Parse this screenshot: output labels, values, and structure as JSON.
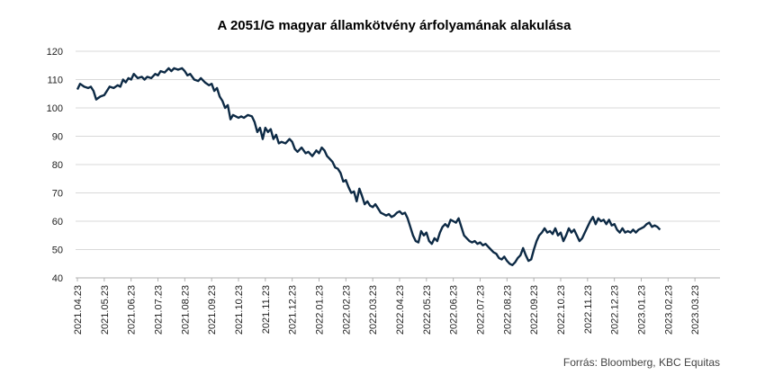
{
  "chart_data": {
    "type": "line",
    "title": "A 2051/G  magyar államkötvény  árfolyamának alakulása",
    "source": "Forrás: Bloomberg,  KBC Equitas",
    "xlabel": "",
    "ylabel": "",
    "ylim": [
      40,
      120
    ],
    "yticks": [
      40,
      50,
      60,
      70,
      80,
      90,
      100,
      110,
      120
    ],
    "x_ticks": [
      "2021.04.23",
      "2021.05.23",
      "2021.06.23",
      "2021.07.23",
      "2021.08.23",
      "2021.09.23",
      "2021.10.23",
      "2021.11.23",
      "2021.12.23",
      "2022.01.23",
      "2022.02.23",
      "2022.03.23",
      "2022.04.23",
      "2022.05.23",
      "2022.06.23",
      "2022.07.23",
      "2022.08.23",
      "2022.09.23",
      "2022.10.23",
      "2022.11.23",
      "2022.12.23",
      "2023.01.23",
      "2023.02.23",
      "2023.03.23"
    ],
    "grid": true,
    "legend": "none",
    "line_color": "#0d2a45",
    "series": [
      {
        "x_unit": "months since 2021.04.23",
        "points": [
          [
            0.0,
            106.5
          ],
          [
            0.1,
            108.5
          ],
          [
            0.25,
            107.5
          ],
          [
            0.4,
            107
          ],
          [
            0.5,
            107.5
          ],
          [
            0.6,
            106
          ],
          [
            0.7,
            103
          ],
          [
            0.85,
            104
          ],
          [
            1.0,
            104.5
          ],
          [
            1.1,
            106
          ],
          [
            1.2,
            107.5
          ],
          [
            1.35,
            107
          ],
          [
            1.5,
            108
          ],
          [
            1.6,
            107.5
          ],
          [
            1.7,
            110
          ],
          [
            1.8,
            109
          ],
          [
            1.9,
            110.5
          ],
          [
            2.0,
            110
          ],
          [
            2.1,
            112
          ],
          [
            2.25,
            110.5
          ],
          [
            2.4,
            111
          ],
          [
            2.5,
            110
          ],
          [
            2.6,
            111
          ],
          [
            2.75,
            110.5
          ],
          [
            2.9,
            112
          ],
          [
            3.0,
            111.5
          ],
          [
            3.1,
            113
          ],
          [
            3.25,
            112.5
          ],
          [
            3.4,
            114
          ],
          [
            3.5,
            113
          ],
          [
            3.6,
            114
          ],
          [
            3.75,
            113.5
          ],
          [
            3.9,
            114
          ],
          [
            4.0,
            113
          ],
          [
            4.1,
            111.5
          ],
          [
            4.2,
            112
          ],
          [
            4.35,
            110
          ],
          [
            4.5,
            109.5
          ],
          [
            4.6,
            110.5
          ],
          [
            4.75,
            109
          ],
          [
            4.9,
            108
          ],
          [
            5.0,
            108.5
          ],
          [
            5.1,
            106
          ],
          [
            5.2,
            107
          ],
          [
            5.3,
            104
          ],
          [
            5.4,
            102.5
          ],
          [
            5.5,
            100
          ],
          [
            5.6,
            101
          ],
          [
            5.7,
            96
          ],
          [
            5.8,
            97.5
          ],
          [
            5.9,
            97
          ],
          [
            6.0,
            96.5
          ],
          [
            6.1,
            97
          ],
          [
            6.2,
            96.5
          ],
          [
            6.35,
            97.5
          ],
          [
            6.5,
            97
          ],
          [
            6.6,
            95
          ],
          [
            6.7,
            91.5
          ],
          [
            6.8,
            93
          ],
          [
            6.9,
            89
          ],
          [
            7.0,
            93
          ],
          [
            7.1,
            91.5
          ],
          [
            7.2,
            92.5
          ],
          [
            7.3,
            89
          ],
          [
            7.4,
            90.5
          ],
          [
            7.5,
            87.5
          ],
          [
            7.6,
            88
          ],
          [
            7.75,
            87.5
          ],
          [
            7.9,
            89
          ],
          [
            8.0,
            88
          ],
          [
            8.1,
            85.5
          ],
          [
            8.2,
            84.5
          ],
          [
            8.35,
            86
          ],
          [
            8.5,
            84
          ],
          [
            8.6,
            84.5
          ],
          [
            8.75,
            83
          ],
          [
            8.9,
            85
          ],
          [
            9.0,
            84
          ],
          [
            9.1,
            86
          ],
          [
            9.2,
            85
          ],
          [
            9.3,
            83
          ],
          [
            9.4,
            82
          ],
          [
            9.5,
            81
          ],
          [
            9.6,
            79
          ],
          [
            9.7,
            78.5
          ],
          [
            9.8,
            77
          ],
          [
            9.9,
            74
          ],
          [
            10.0,
            74.5
          ],
          [
            10.1,
            72
          ],
          [
            10.2,
            70
          ],
          [
            10.3,
            70.5
          ],
          [
            10.4,
            67
          ],
          [
            10.5,
            71.5
          ],
          [
            10.6,
            69
          ],
          [
            10.7,
            66
          ],
          [
            10.8,
            67
          ],
          [
            10.9,
            65.5
          ],
          [
            11.0,
            65
          ],
          [
            11.1,
            66
          ],
          [
            11.2,
            64.5
          ],
          [
            11.3,
            63
          ],
          [
            11.4,
            62.5
          ],
          [
            11.5,
            62
          ],
          [
            11.6,
            62.5
          ],
          [
            11.7,
            61.5
          ],
          [
            11.8,
            62
          ],
          [
            11.9,
            63
          ],
          [
            12.0,
            63.5
          ],
          [
            12.1,
            62.5
          ],
          [
            12.2,
            63
          ],
          [
            12.3,
            61
          ],
          [
            12.4,
            58
          ],
          [
            12.5,
            55
          ],
          [
            12.6,
            53
          ],
          [
            12.7,
            52.5
          ],
          [
            12.8,
            56.5
          ],
          [
            12.9,
            55
          ],
          [
            13.0,
            56
          ],
          [
            13.1,
            53
          ],
          [
            13.2,
            52
          ],
          [
            13.3,
            54
          ],
          [
            13.4,
            53
          ],
          [
            13.5,
            56
          ],
          [
            13.6,
            58
          ],
          [
            13.7,
            59
          ],
          [
            13.8,
            58
          ],
          [
            13.9,
            60.5
          ],
          [
            14.0,
            60
          ],
          [
            14.1,
            59.5
          ],
          [
            14.2,
            61
          ],
          [
            14.3,
            58
          ],
          [
            14.4,
            55
          ],
          [
            14.5,
            54
          ],
          [
            14.6,
            53
          ],
          [
            14.7,
            52.5
          ],
          [
            14.8,
            53
          ],
          [
            14.9,
            52
          ],
          [
            15.0,
            52.5
          ],
          [
            15.1,
            51.5
          ],
          [
            15.2,
            52
          ],
          [
            15.3,
            51
          ],
          [
            15.4,
            50
          ],
          [
            15.5,
            49
          ],
          [
            15.6,
            48.5
          ],
          [
            15.7,
            47
          ],
          [
            15.8,
            46.5
          ],
          [
            15.9,
            47.5
          ],
          [
            16.0,
            46
          ],
          [
            16.1,
            45
          ],
          [
            16.2,
            44.5
          ],
          [
            16.3,
            45.5
          ],
          [
            16.4,
            47
          ],
          [
            16.5,
            48
          ],
          [
            16.6,
            50.5
          ],
          [
            16.7,
            48
          ],
          [
            16.8,
            46
          ],
          [
            16.9,
            46.5
          ],
          [
            17.0,
            50
          ],
          [
            17.1,
            53
          ],
          [
            17.2,
            55
          ],
          [
            17.3,
            56
          ],
          [
            17.4,
            57.5
          ],
          [
            17.5,
            56
          ],
          [
            17.6,
            56.5
          ],
          [
            17.7,
            55.5
          ],
          [
            17.8,
            57.5
          ],
          [
            17.9,
            55
          ],
          [
            18.0,
            56
          ],
          [
            18.1,
            53
          ],
          [
            18.2,
            55
          ],
          [
            18.3,
            57.5
          ],
          [
            18.4,
            56
          ],
          [
            18.5,
            57
          ],
          [
            18.6,
            55
          ],
          [
            18.7,
            53
          ],
          [
            18.8,
            54
          ],
          [
            18.9,
            56
          ],
          [
            19.0,
            58
          ],
          [
            19.1,
            60
          ],
          [
            19.2,
            61.5
          ],
          [
            19.3,
            59
          ],
          [
            19.4,
            61
          ],
          [
            19.5,
            60
          ],
          [
            19.6,
            60.5
          ],
          [
            19.7,
            59
          ],
          [
            19.8,
            60.5
          ],
          [
            19.9,
            58.5
          ],
          [
            20.0,
            59
          ],
          [
            20.1,
            57
          ],
          [
            20.2,
            56
          ],
          [
            20.3,
            57.5
          ],
          [
            20.4,
            56
          ],
          [
            20.5,
            56.5
          ],
          [
            20.6,
            56
          ],
          [
            20.7,
            57
          ],
          [
            20.8,
            56
          ],
          [
            20.9,
            57
          ],
          [
            21.0,
            57.5
          ],
          [
            21.1,
            58
          ],
          [
            21.2,
            59
          ],
          [
            21.3,
            59.5
          ],
          [
            21.4,
            58
          ],
          [
            21.5,
            58.5
          ],
          [
            21.6,
            58
          ],
          [
            21.7,
            57
          ]
        ]
      }
    ]
  }
}
